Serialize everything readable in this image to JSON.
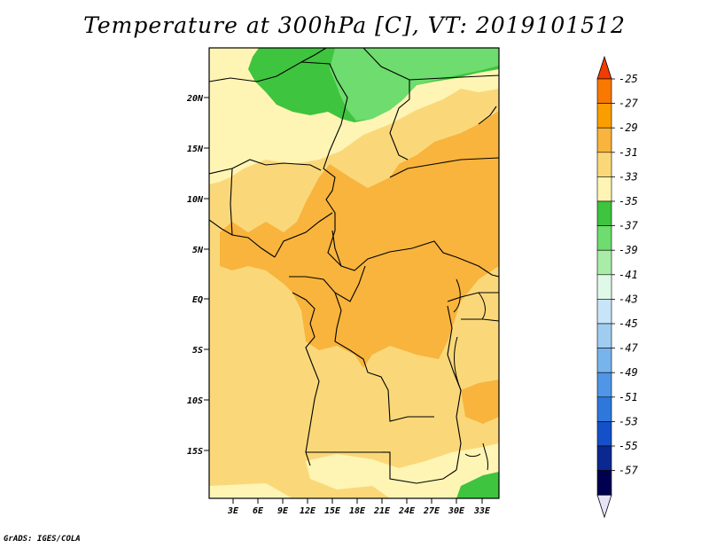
{
  "title": "Temperature at 300hPa [C], VT: 2019101512",
  "credit": "GrADS: IGES/COLA",
  "map": {
    "lat_labels": [
      "20N",
      "15N",
      "10N",
      "5N",
      "EQ",
      "5S",
      "10S",
      "15S"
    ],
    "lon_labels": [
      "3E",
      "6E",
      "9E",
      "12E",
      "15E",
      "18E",
      "21E",
      "24E",
      "27E",
      "30E",
      "33E"
    ]
  },
  "legend": {
    "labels": [
      "-25",
      "-27",
      "-29",
      "-31",
      "-33",
      "-35",
      "-37",
      "-39",
      "-41",
      "-43",
      "-45",
      "-47",
      "-49",
      "-51",
      "-53",
      "-55",
      "-57"
    ],
    "colors": [
      "#f03c00",
      "#f87800",
      "#fa9e00",
      "#f8b43c",
      "#fad87a",
      "#fef5b4",
      "#3ec43e",
      "#6edc6e",
      "#a8eca8",
      "#e0f8e8",
      "#c8e4f8",
      "#a0ccf0",
      "#78b4ec",
      "#5096e6",
      "#2e78dc",
      "#1450c8",
      "#0a2890",
      "#000050",
      "#e8e4f8"
    ]
  }
}
